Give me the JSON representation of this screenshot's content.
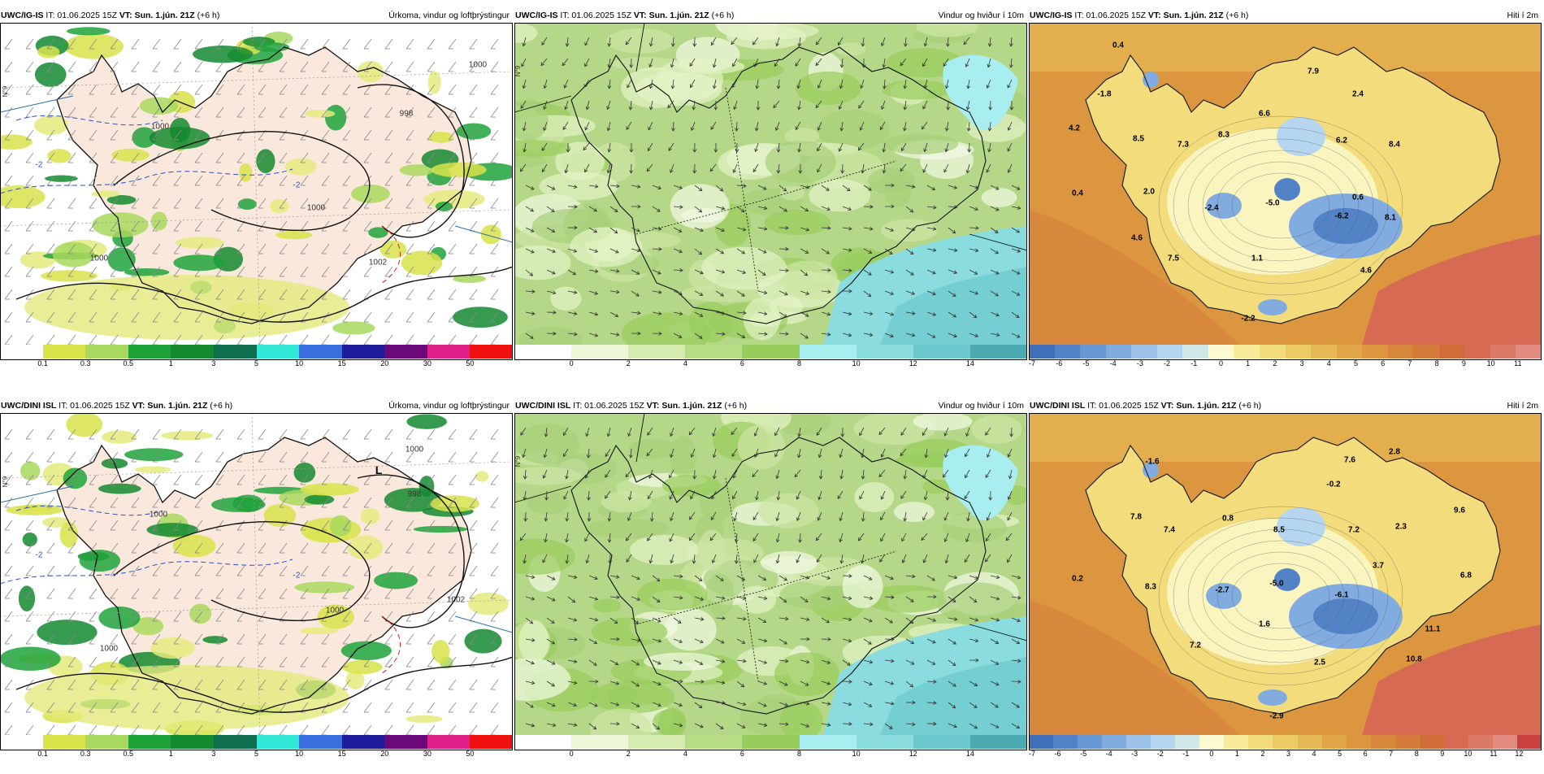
{
  "panels": [
    {
      "row": 0,
      "col": 0,
      "model": "UWC/IG-IS",
      "it": "IT: 01.06.2025 15Z",
      "vt": "VT: Sun. 1.jún. 21Z",
      "lead": "(+6 h)",
      "title": "Úrkoma, vindur og loftþrýstingur"
    },
    {
      "row": 0,
      "col": 1,
      "model": "UWC/IG-IS",
      "it": "IT: 01.06.2025 15Z",
      "vt": "VT: Sun. 1.jún. 21Z",
      "lead": "(+6 h)",
      "title": "Vindur og hviður í 10m"
    },
    {
      "row": 0,
      "col": 2,
      "model": "UWC/IG-IS",
      "it": "IT: 01.06.2025 15Z",
      "vt": "VT: Sun. 1.jún. 21Z",
      "lead": "(+6 h)",
      "title": "Hiti í 2m"
    },
    {
      "row": 1,
      "col": 0,
      "model": "UWC/DINI ISL",
      "it": "IT: 01.06.2025 15Z",
      "vt": "VT: Sun. 1.jún. 21Z",
      "lead": "(+6 h)",
      "title": "Úrkoma, vindur og loftþrýstingur"
    },
    {
      "row": 1,
      "col": 1,
      "model": "UWC/DINI ISL",
      "it": "IT: 01.06.2025 15Z",
      "vt": "VT: Sun. 1.jún. 21Z",
      "lead": "(+6 h)",
      "title": "Vindur og hviður í 10m"
    },
    {
      "row": 1,
      "col": 2,
      "model": "UWC/DINI ISL",
      "it": "IT: 01.06.2025 15Z",
      "vt": "VT: Sun. 1.jún. 21Z",
      "lead": "(+6 h)",
      "title": "Hiti í 2m"
    }
  ],
  "colorbars": {
    "precip": {
      "labels": [
        "0.1",
        "0.3",
        "0.5",
        "1",
        "3",
        "5",
        "10",
        "15",
        "20",
        "30",
        "50"
      ],
      "colors": [
        "#ffffff",
        "#d8e34a",
        "#a8d85e",
        "#1ea33b",
        "#148a30",
        "#0f6e4e",
        "#33e8d8",
        "#3a6fe0",
        "#1c1c9a",
        "#6a0a7a",
        "#e0208a",
        "#f01010"
      ]
    },
    "wind": {
      "labels": [
        "0",
        "2",
        "4",
        "6",
        "8",
        "10",
        "12",
        "14"
      ],
      "colors": [
        "#ffffff",
        "#eef6d8",
        "#d6ebb0",
        "#b8dc86",
        "#98cd5c",
        "#a8eef0",
        "#8adcde",
        "#6cc8cc",
        "#4aaab0"
      ]
    },
    "temp_top": {
      "labels": [
        "-7",
        "-6",
        "-5",
        "-4",
        "-3",
        "-2",
        "-1",
        "0",
        "1",
        "2",
        "3",
        "4",
        "5",
        "6",
        "7",
        "8",
        "9",
        "10",
        "11"
      ],
      "colors": [
        "#3e6fb8",
        "#5283c6",
        "#6898d4",
        "#82acdf",
        "#9cc2ea",
        "#b6d6f0",
        "#d0e8e8",
        "#fbfad0",
        "#f8ec9c",
        "#f2dc7c",
        "#eccb64",
        "#e6b954",
        "#e0a648",
        "#dc9640",
        "#d8883c",
        "#d47a38",
        "#d06c38",
        "#d66a52",
        "#dc7a6a",
        "#e08a80"
      ]
    },
    "temp_bot": {
      "labels": [
        "-7",
        "-6",
        "-5",
        "-4",
        "-3",
        "-2",
        "-1",
        "0",
        "1",
        "2",
        "3",
        "4",
        "5",
        "6",
        "7",
        "8",
        "9",
        "10",
        "11",
        "12"
      ],
      "colors": [
        "#3e6fb8",
        "#5283c6",
        "#6898d4",
        "#82acdf",
        "#9cc2ea",
        "#b6d6f0",
        "#d0e8e8",
        "#fbfad0",
        "#f8ec9c",
        "#f2dc7c",
        "#eccb64",
        "#e6b954",
        "#e0a648",
        "#dc9640",
        "#d8883c",
        "#d47a38",
        "#d06c38",
        "#d66a52",
        "#dc7a6a",
        "#e08a80",
        "#c84040"
      ]
    }
  },
  "temp_top_values": [
    "0.4",
    "-1.8",
    "4.2",
    "8.5",
    "7.3",
    "6.6",
    "8.3",
    "7.9",
    "2.4",
    "6.2",
    "8.4",
    "0.4",
    "2.0",
    "-2.4",
    "-5.0",
    "-6.2",
    "0.6",
    "8.1",
    "4.6",
    "7.5",
    "1.1",
    "4.6",
    "-2.2"
  ],
  "temp_bot_values": [
    "-1.6",
    "7.6",
    "2.8",
    "-0.2",
    "7.8",
    "0.8",
    "7.4",
    "8.5",
    "7.2",
    "9.6",
    "2.3",
    "3.7",
    "6.8",
    "0.2",
    "8.3",
    "-2.7",
    "-5.0",
    "-6.1",
    "1.6",
    "11.1",
    "7.2",
    "2.5",
    "10.8",
    "-2.9"
  ],
  "pressure_top": [
    "1000",
    "1000",
    "1000",
    "1000",
    "1002",
    "998"
  ],
  "pressure_bot": [
    "1000",
    "1000",
    "1000",
    "1000",
    "1002",
    "998"
  ],
  "low_label": "L",
  "lat_label": "N°9",
  "precip_neg": [
    "-2",
    "-2"
  ]
}
